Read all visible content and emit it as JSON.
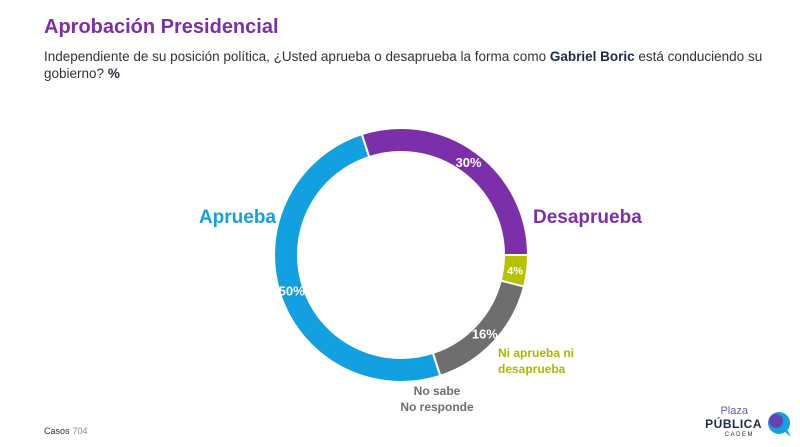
{
  "header": {
    "title": "Aprobación Presidencial",
    "subtitle_pre": "Independiente de su posición política, ¿Usted aprueba o desaprueba la forma como ",
    "subtitle_name": "Gabriel Boric",
    "subtitle_post": " está conduciendo su gobierno? ",
    "subtitle_unit": "%"
  },
  "chart_data": {
    "type": "pie",
    "title": "Aprobación Presidencial",
    "slices": [
      {
        "label": "Desaprueba",
        "label_lines": [
          "Desaprueba"
        ],
        "value": 30,
        "value_label": "30%",
        "color": "#7b2fa8",
        "label_color": "#7b2fa8"
      },
      {
        "label": "Ni aprueba ni desaprueba",
        "label_lines": [
          "Ni aprueba ni",
          "desaprueba"
        ],
        "value": 4,
        "value_label": "4%",
        "color": "#b5c200",
        "label_color": "#aab800"
      },
      {
        "label": "No sabe No responde",
        "label_lines": [
          "No sabe",
          "No responde"
        ],
        "value": 16,
        "value_label": "16%",
        "color": "#6e6e6e",
        "label_color": "#6e6e6e"
      },
      {
        "label": "Aprueba",
        "label_lines": [
          "Aprueba"
        ],
        "value": 50,
        "value_label": "50%",
        "color": "#13a0e0",
        "label_color": "#13a0e0"
      }
    ],
    "donut": true
  },
  "footer": {
    "casos_label": "Casos",
    "casos_value": "704"
  },
  "logo": {
    "line1": "Plaza",
    "line2": "PÚBLICA",
    "line3": "CADEM"
  }
}
